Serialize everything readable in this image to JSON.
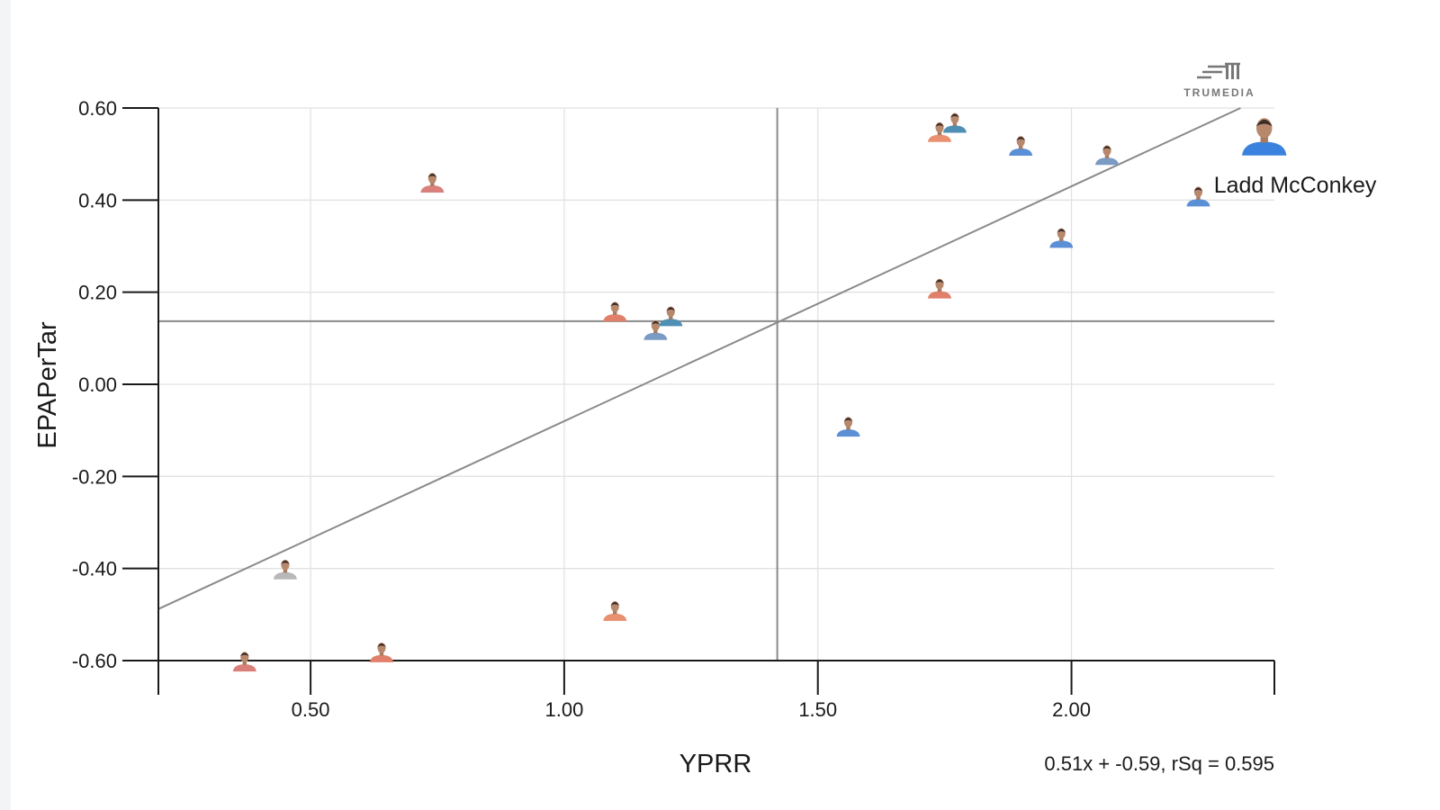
{
  "chart_data": {
    "type": "scatter",
    "xlabel": "YPRR",
    "ylabel": "EPAPerTar",
    "xlim": [
      0.2,
      2.4
    ],
    "ylim": [
      -0.6,
      0.6
    ],
    "x_ticks": [
      "0.50",
      "1.00",
      "1.50",
      "2.00"
    ],
    "y_ticks": [
      "0.60",
      "0.40",
      "0.20",
      "0.00",
      "-0.20",
      "-0.40",
      "-0.60"
    ],
    "grid": true,
    "mean_x": 1.42,
    "mean_y": 0.137,
    "trendline": {
      "slope": 0.51,
      "intercept": -0.59,
      "r_squared": 0.595
    },
    "trend_equation": "0.51x + -0.59, rSq = 0.595",
    "points": [
      {
        "x": 0.37,
        "y": -0.61,
        "color": "#d9807a"
      },
      {
        "x": 0.45,
        "y": -0.41,
        "color": "#b8b8b8"
      },
      {
        "x": 0.64,
        "y": -0.59,
        "color": "#e0806a"
      },
      {
        "x": 0.74,
        "y": 0.43,
        "color": "#d9807a"
      },
      {
        "x": 1.1,
        "y": 0.15,
        "color": "#e0806a"
      },
      {
        "x": 1.1,
        "y": -0.5,
        "color": "#e89070"
      },
      {
        "x": 1.18,
        "y": 0.11,
        "color": "#7a9bc4"
      },
      {
        "x": 1.21,
        "y": 0.14,
        "color": "#4f8fb4"
      },
      {
        "x": 1.56,
        "y": -0.1,
        "color": "#5b8fd6"
      },
      {
        "x": 1.74,
        "y": 0.54,
        "color": "#e89070"
      },
      {
        "x": 1.74,
        "y": 0.2,
        "color": "#e0806a"
      },
      {
        "x": 1.77,
        "y": 0.56,
        "color": "#4f8fb4"
      },
      {
        "x": 1.9,
        "y": 0.51,
        "color": "#5b8fd6"
      },
      {
        "x": 1.98,
        "y": 0.31,
        "color": "#5b8fd6"
      },
      {
        "x": 2.07,
        "y": 0.49,
        "color": "#7a9bc4"
      },
      {
        "x": 2.25,
        "y": 0.4,
        "color": "#5b8fd6"
      }
    ],
    "highlighted": {
      "x": 2.38,
      "y": 0.53,
      "label": "Ladd McConkey",
      "color": "#3a82dd"
    }
  },
  "logo": {
    "text": "TRUMEDIA"
  }
}
